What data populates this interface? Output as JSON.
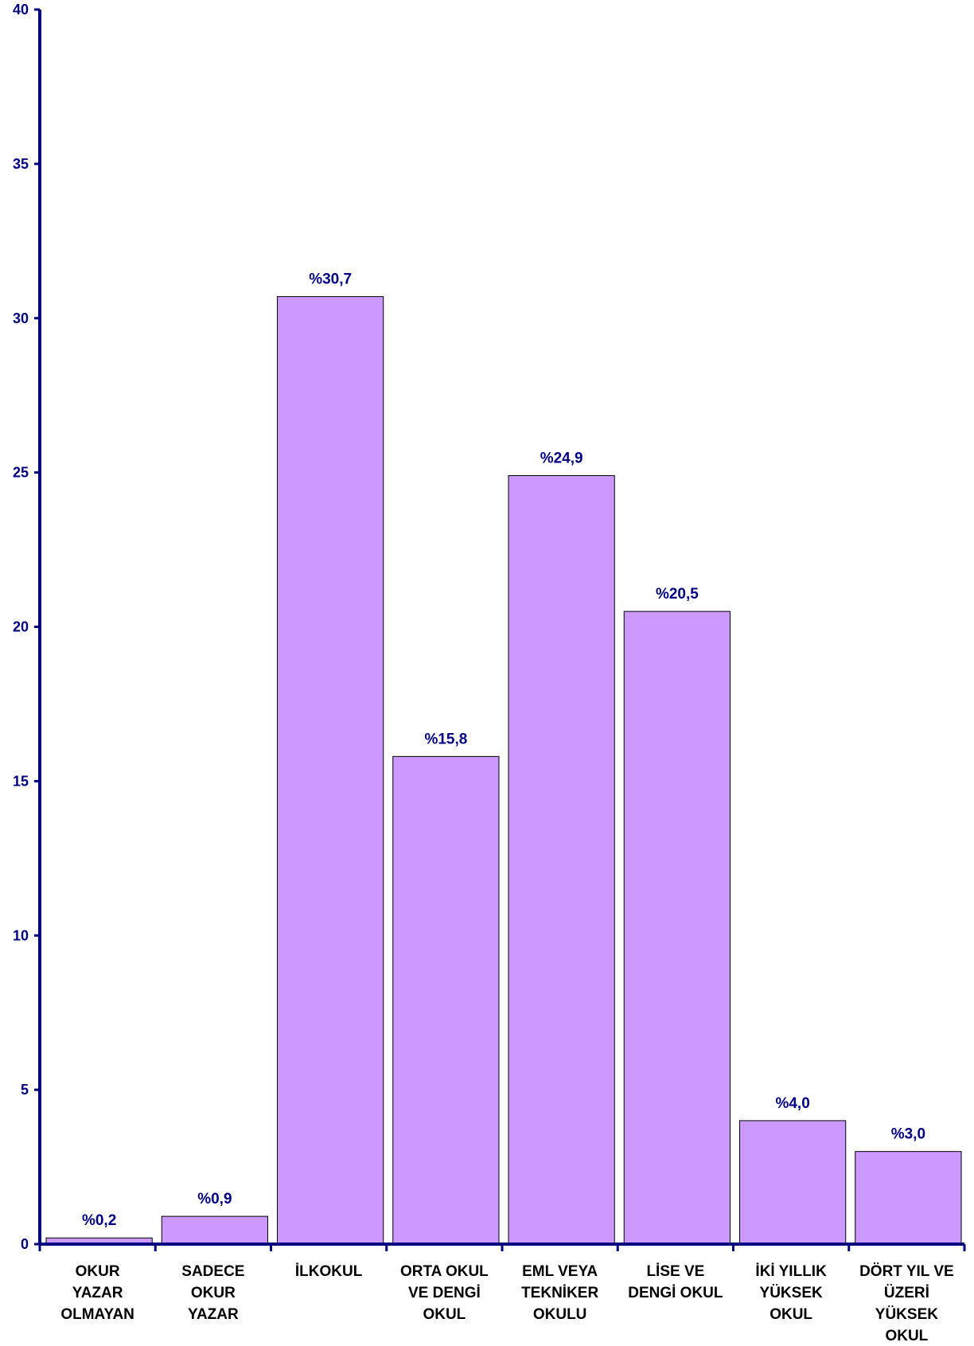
{
  "chart_data": {
    "type": "bar",
    "title": "",
    "xlabel": "",
    "ylabel": "",
    "ylim": [
      0,
      40
    ],
    "y_ticks": [
      0,
      5,
      10,
      15,
      20,
      25,
      30,
      35,
      40
    ],
    "grid": false,
    "legend": "none",
    "categories": [
      [
        "OKUR",
        "YAZAR",
        "OLMAYAN"
      ],
      [
        "SADECE",
        "OKUR",
        "YAZAR"
      ],
      [
        "İLKOKUL"
      ],
      [
        "ORTA OKUL",
        "VE DENGİ",
        "OKUL"
      ],
      [
        "EML VEYA",
        "TEKNİKER",
        "OKULU"
      ],
      [
        "LİSE VE",
        "DENGİ OKUL"
      ],
      [
        "İKİ YILLIK",
        "YÜKSEK",
        "OKUL"
      ],
      [
        "DÖRT YIL VE",
        "ÜZERİ",
        "YÜKSEK",
        "OKUL"
      ]
    ],
    "values": [
      0.2,
      0.9,
      30.7,
      15.8,
      24.9,
      20.5,
      4.0,
      3.0
    ],
    "data_labels": [
      "%0,2",
      "%0,9",
      "%30,7",
      "%15,8",
      "%24,9",
      "%20,5",
      "%4,0",
      "%3,0"
    ],
    "colors": {
      "bar_fill": "#CC99FF",
      "bar_stroke": "#000000",
      "axis": "#000080",
      "text": "#000080",
      "data_label": "#000080"
    }
  }
}
